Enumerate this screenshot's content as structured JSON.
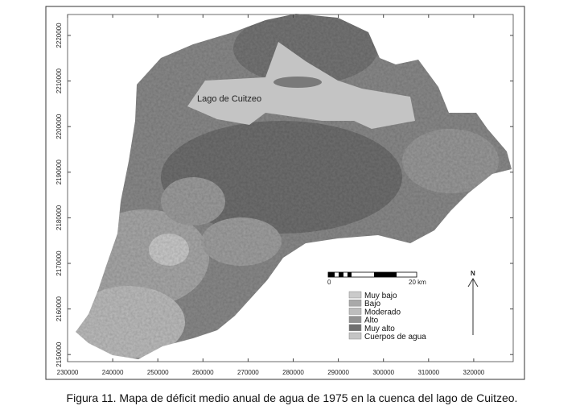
{
  "figure": {
    "caption": "Figura 11. Mapa de déficit medio anual de agua de 1975 en la cuenca del lago de Cuitzeo.",
    "lake_label": "Lago de Cuitzeo",
    "x_ticks": [
      "230000",
      "240000",
      "250000",
      "260000",
      "270000",
      "280000",
      "290000",
      "300000",
      "310000",
      "320000"
    ],
    "y_ticks": [
      "2220000",
      "2210000",
      "2200000",
      "2190000",
      "2180000",
      "2170000",
      "2160000",
      "2150000"
    ],
    "scale_bar": {
      "start_label": "0",
      "end_label": "20 km"
    },
    "north_label": "N",
    "legend": [
      {
        "label": "Muy bajo",
        "color": "#cacaca"
      },
      {
        "label": "Bajo",
        "color": "#a9a9a9"
      },
      {
        "label": "Moderado",
        "color": "#bdbdbd"
      },
      {
        "label": "Alto",
        "color": "#929292"
      },
      {
        "label": "Muy alto",
        "color": "#6f6f6f"
      },
      {
        "label": "Cuerpos de agua",
        "color": "#c4c4c4"
      }
    ]
  }
}
